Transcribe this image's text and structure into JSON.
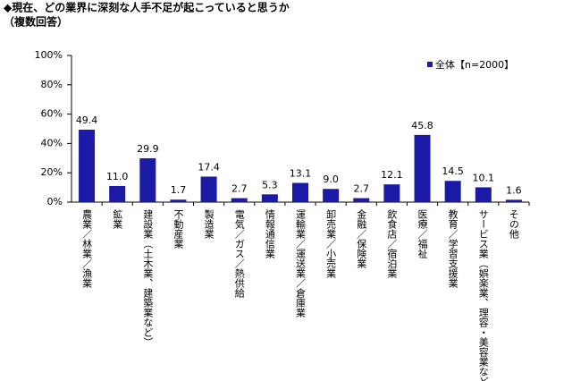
{
  "chart_data": {
    "type": "bar",
    "title": "◆現在、どの業界に深刻な人手不足が起こっていると思うか",
    "subtitle": "（複数回答）",
    "categories": [
      "農業／林業／漁業",
      "鉱業",
      "建設業（土木業、建築業など）",
      "不動産業",
      "製造業",
      "電気／ガス／熱供給",
      "情報通信業",
      "運輸業／運送業／倉庫業",
      "卸売業／小売業",
      "金融／保険業",
      "飲食店／宿泊業",
      "医療／福祉",
      "教育／学習支援業",
      "サービス業（娯楽業、理容・美容業など）",
      "その他"
    ],
    "series": [
      {
        "name": "全体【n=2000】",
        "color": "#1a1aa6",
        "values": [
          49.4,
          11.0,
          29.9,
          1.7,
          17.4,
          2.7,
          5.3,
          13.1,
          9.0,
          2.7,
          12.1,
          45.8,
          14.5,
          10.1,
          1.6
        ],
        "value_labels": [
          "49.4",
          "11.0",
          "29.9",
          "1.7",
          "17.4",
          "2.7",
          "5.3",
          "13.1",
          "9.0",
          "2.7",
          "12.1",
          "45.8",
          "14.5",
          "10.1",
          "1.6"
        ]
      }
    ],
    "ylim": [
      0,
      100
    ],
    "yticks": [
      {
        "value": 0,
        "label": "0%"
      },
      {
        "value": 20,
        "label": "20%"
      },
      {
        "value": 40,
        "label": "40%"
      },
      {
        "value": 60,
        "label": "60%"
      },
      {
        "value": 80,
        "label": "80%"
      },
      {
        "value": 100,
        "label": "100%"
      }
    ],
    "grid": false,
    "legend": "top-right"
  }
}
